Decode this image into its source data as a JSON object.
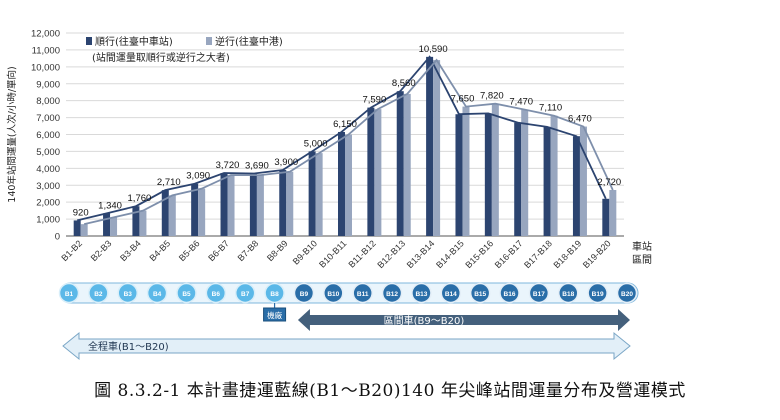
{
  "chart_data": {
    "type": "bar",
    "ylabel": "140年站間運量(人次/小時/單向)",
    "xlabel_unit": [
      "車站",
      "區間"
    ],
    "ylim": [
      0,
      12000
    ],
    "yticks": [
      "0",
      "1,000",
      "2,000",
      "3,000",
      "4,000",
      "5,000",
      "6,000",
      "7,000",
      "8,000",
      "9,000",
      "10,000",
      "11,000",
      "12,000"
    ],
    "ytick_values": [
      0,
      1000,
      2000,
      3000,
      4000,
      5000,
      6000,
      7000,
      8000,
      9000,
      10000,
      11000,
      12000
    ],
    "grid": true,
    "legend_placement": "top-left",
    "legend_note": "(站間運量取順行或逆行之大者)",
    "categories": [
      "B1-B2",
      "B2-B3",
      "B3-B4",
      "B4-B5",
      "B5-B6",
      "B6-B7",
      "B7-B8",
      "B8-B9",
      "B9-B10",
      "B10-B11",
      "B11-B12",
      "B12-B13",
      "B13-B14",
      "B14-B15",
      "B15-B16",
      "B16-B17",
      "B17-B18",
      "B18-B19",
      "B19-B20"
    ],
    "series": [
      {
        "name": "順行(往臺中車站)",
        "color": "#2c4470",
        "values": [
          920,
          1340,
          1760,
          2710,
          3090,
          3720,
          3690,
          3900,
          5000,
          6150,
          7590,
          8560,
          10590,
          7200,
          7250,
          6700,
          6450,
          5900,
          2200
        ]
      },
      {
        "name": "逆行(往臺中港)",
        "color": "#98a6bf",
        "values": [
          700,
          1100,
          1500,
          2400,
          2800,
          3600,
          3600,
          3800,
          4900,
          6000,
          7500,
          8400,
          10400,
          7650,
          7820,
          7470,
          7110,
          6470,
          2720
        ]
      }
    ],
    "data_labels": [
      "920",
      "1,340",
      "1,760",
      "2,710",
      "3,090",
      "3,720",
      "3,690",
      "3,900",
      "5,000",
      "6,150",
      "7,590",
      "8,560",
      "10,590",
      "7,650",
      "7,820",
      "7,470",
      "7,110",
      "6,470",
      "2,720"
    ],
    "label_values": [
      920,
      1340,
      1760,
      2710,
      3090,
      3720,
      3690,
      3900,
      5000,
      6150,
      7590,
      8560,
      10590,
      7650,
      7820,
      7470,
      7110,
      6470,
      2720
    ]
  },
  "stations": [
    "B1",
    "B2",
    "B3",
    "B4",
    "B5",
    "B6",
    "B7",
    "B8",
    "B9",
    "B10",
    "B11",
    "B12",
    "B13",
    "B14",
    "B15",
    "B16",
    "B17",
    "B18",
    "B19",
    "B20"
  ],
  "station_colors": {
    "light": "#5bb8e8",
    "dark": "#2a6ea8",
    "light_ring": "#d8eef9",
    "dark_ring": "#e3eef7"
  },
  "depot_label": "機廠",
  "arrows": {
    "inner": {
      "label": "區間車(B9～B20)",
      "color": "#44607c"
    },
    "outer": {
      "label": "全程車(B1～B20)",
      "color": "#e2eff8",
      "border": "#7aa6c6"
    }
  },
  "caption": "圖 8.3.2-1 本計畫捷運藍線(B1～B20)140 年尖峰站間運量分布及營運模式"
}
